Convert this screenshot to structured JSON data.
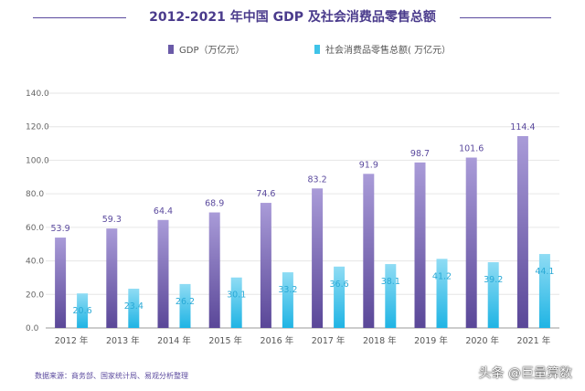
{
  "chart_data": {
    "type": "bar",
    "title": "2012-2021 年中国 GDP 及社会消费品零售总额",
    "categories": [
      "2012 年",
      "2013 年",
      "2014 年",
      "2015 年",
      "2016 年",
      "2017 年",
      "2018 年",
      "2019 年",
      "2020 年",
      "2021 年"
    ],
    "series": [
      {
        "name": "GDP（万亿元）",
        "values": [
          53.9,
          59.3,
          64.4,
          68.9,
          74.6,
          83.2,
          91.9,
          98.7,
          101.6,
          114.4
        ],
        "color": "#6a5aa8"
      },
      {
        "name": "社会消费品零售总额( 万亿元）",
        "values": [
          20.6,
          23.4,
          26.2,
          30.1,
          33.2,
          36.6,
          38.1,
          41.2,
          39.2,
          44.1
        ],
        "color": "#3fc3e8"
      }
    ],
    "y_ticks": [
      "0.0",
      "20.0",
      "40.0",
      "60.0",
      "80.0",
      "100.0",
      "120.0",
      "140.0"
    ],
    "ylim": [
      0,
      140
    ],
    "grid": true,
    "legend_position": "top-center"
  },
  "source_note": "数据来源：商务部、国家统计局、易观分析整理",
  "watermark": "头条 @巨量算数",
  "colors": {
    "title": "#4a3b8c",
    "gdp_label": "#5b4a9e",
    "retail_label": "#29a9d6",
    "axis": "#666666"
  }
}
